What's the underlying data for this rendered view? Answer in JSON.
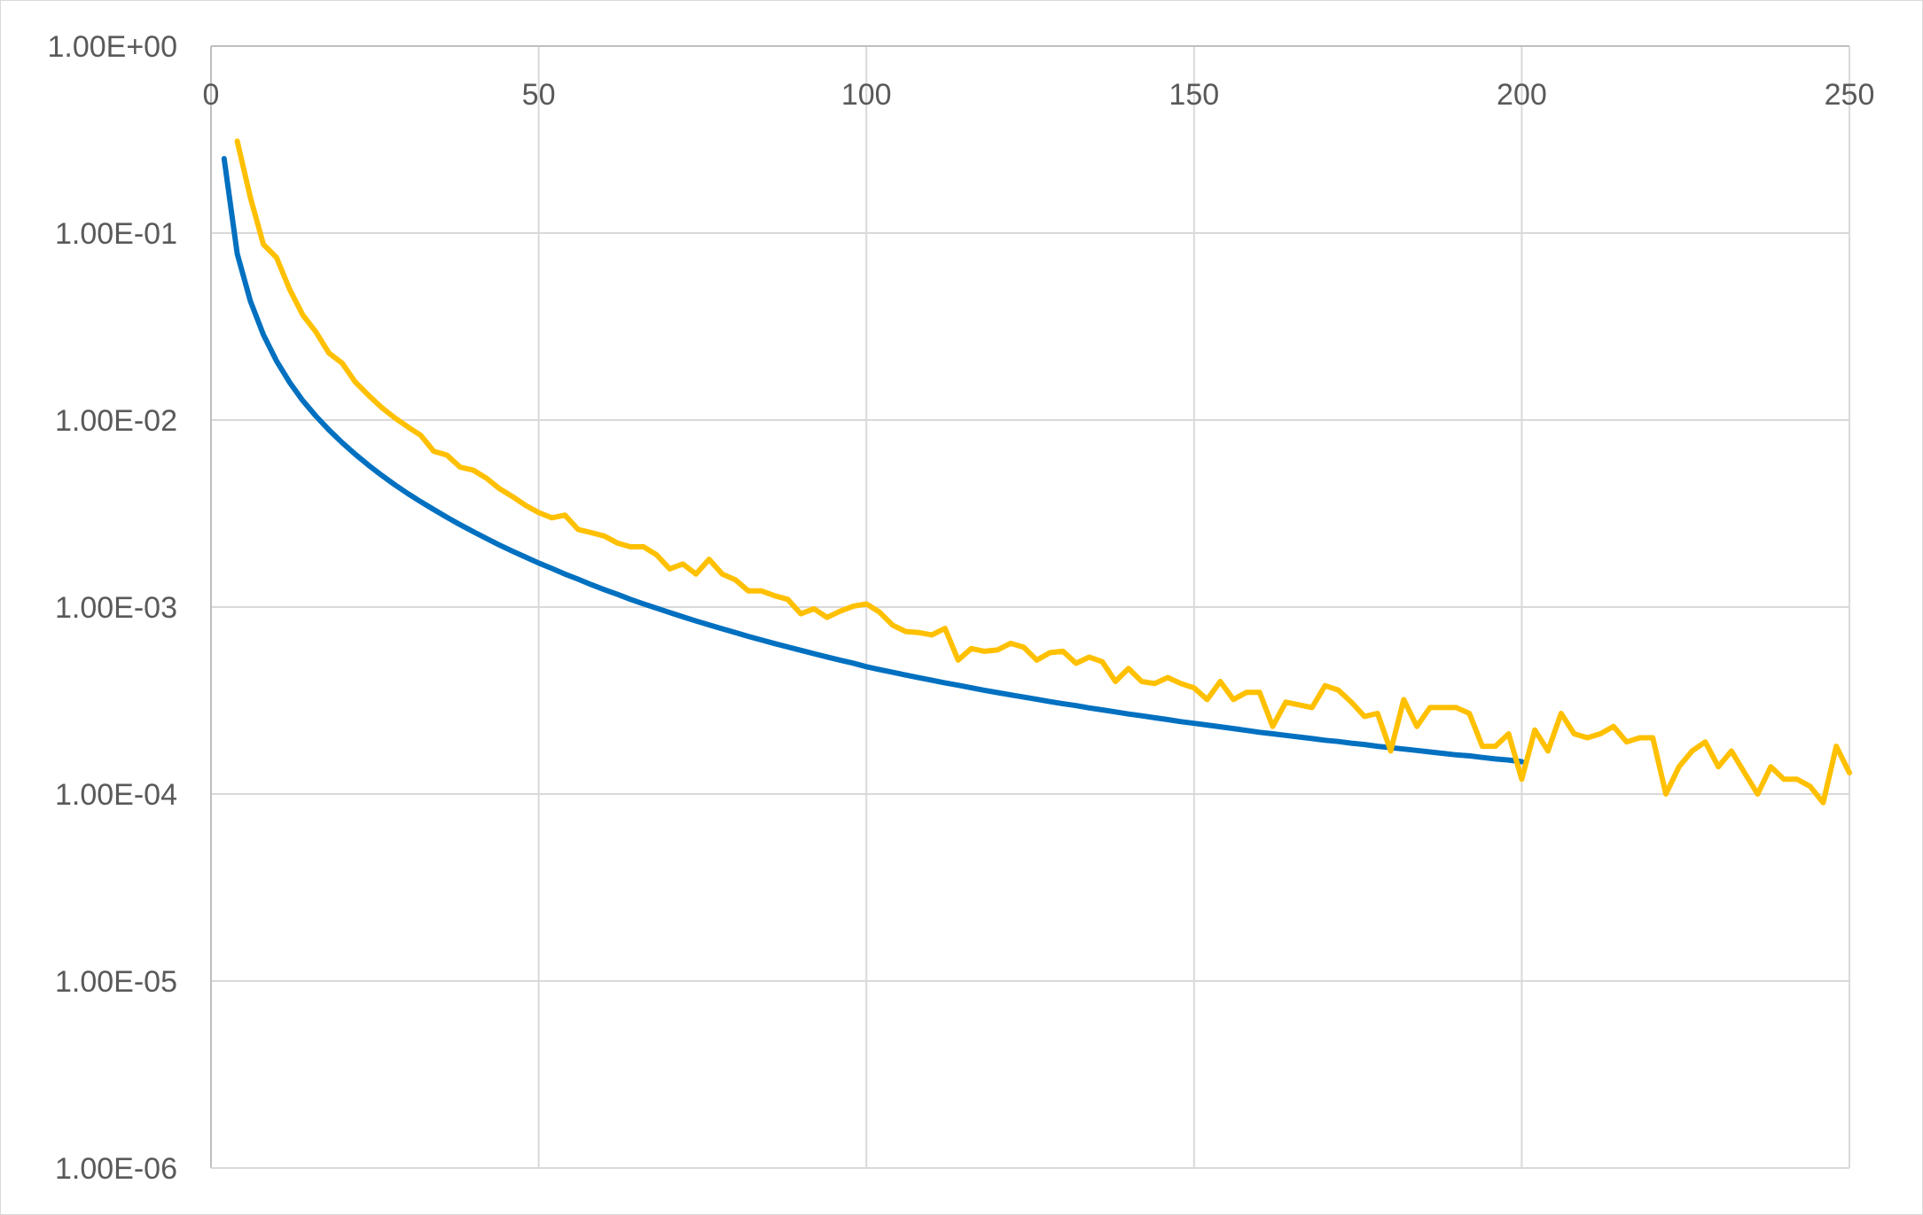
{
  "chart_data": {
    "type": "line",
    "x_axis": {
      "position": "top",
      "min": 0,
      "max": 250,
      "major_step": 50,
      "tick_labels": [
        "0",
        "50",
        "100",
        "150",
        "200",
        "250"
      ]
    },
    "y_axis": {
      "scale": "log",
      "min": 1e-06,
      "max": 1,
      "tick_values": [
        1,
        0.1,
        0.01,
        0.001,
        0.0001,
        1e-05,
        1e-06
      ],
      "tick_labels": [
        "1.00E+00",
        "1.00E-01",
        "1.00E-02",
        "1.00E-03",
        "1.00E-04",
        "1.00E-05",
        "1.00E-06"
      ]
    },
    "grid": true,
    "legend": "none",
    "series": [
      {
        "color": "#0070c0",
        "x": [
          2,
          4,
          6,
          8,
          10,
          12,
          14,
          16,
          18,
          20,
          22,
          24,
          26,
          28,
          30,
          32,
          34,
          36,
          38,
          40,
          42,
          44,
          46,
          48,
          50,
          52,
          54,
          56,
          58,
          60,
          62,
          64,
          66,
          68,
          70,
          72,
          74,
          76,
          78,
          80,
          82,
          84,
          86,
          88,
          90,
          92,
          94,
          96,
          98,
          100,
          102,
          104,
          106,
          108,
          110,
          112,
          114,
          116,
          118,
          120,
          122,
          124,
          126,
          128,
          130,
          132,
          134,
          136,
          138,
          140,
          142,
          144,
          146,
          148,
          150,
          152,
          154,
          156,
          158,
          160,
          162,
          164,
          166,
          168,
          170,
          172,
          174,
          176,
          178,
          180,
          182,
          184,
          186,
          188,
          190,
          192,
          194,
          196,
          198,
          200
        ],
        "y": [
          0.25,
          0.0775,
          0.0433,
          0.0286,
          0.0207,
          0.0159,
          0.0127,
          0.0105,
          0.00885,
          0.00758,
          0.00657,
          0.00575,
          0.00508,
          0.00452,
          0.00405,
          0.00366,
          0.00332,
          0.00302,
          0.00276,
          0.00253,
          0.00233,
          0.00215,
          0.00199,
          0.00185,
          0.00172,
          0.00161,
          0.0015,
          0.00141,
          0.00132,
          0.00124,
          0.00117,
          0.0011,
          0.00104,
          0.000986,
          0.000935,
          0.000887,
          0.000843,
          0.000803,
          0.000765,
          0.00073,
          0.000697,
          0.000667,
          0.000638,
          0.000612,
          0.000587,
          0.000563,
          0.000541,
          0.00052,
          0.000501,
          0.00048,
          0.000463,
          0.000448,
          0.000433,
          0.000419,
          0.000406,
          0.000393,
          0.000382,
          0.00037,
          0.000359,
          0.000349,
          0.000339,
          0.00033,
          0.000321,
          0.000312,
          0.000304,
          0.000297,
          0.000289,
          0.000282,
          0.000275,
          0.000268,
          0.000262,
          0.000256,
          0.00025,
          0.000244,
          0.000239,
          0.000234,
          0.000229,
          0.000224,
          0.000219,
          0.000214,
          0.00021,
          0.000206,
          0.000202,
          0.000198,
          0.000194,
          0.000191,
          0.000187,
          0.000184,
          0.00018,
          0.000177,
          0.000174,
          0.000171,
          0.000168,
          0.000165,
          0.000162,
          0.00016,
          0.000157,
          0.000154,
          0.000152,
          0.000149
        ]
      },
      {
        "color": "#ffc000",
        "x": [
          4,
          6,
          8,
          10,
          12,
          14,
          16,
          18,
          20,
          22,
          24,
          26,
          28,
          30,
          32,
          34,
          36,
          38,
          40,
          42,
          44,
          46,
          48,
          50,
          52,
          54,
          56,
          58,
          60,
          62,
          64,
          66,
          68,
          70,
          72,
          74,
          76,
          78,
          80,
          82,
          84,
          86,
          88,
          90,
          92,
          94,
          96,
          98,
          100,
          102,
          104,
          106,
          108,
          110,
          112,
          114,
          116,
          118,
          120,
          122,
          124,
          126,
          128,
          130,
          132,
          134,
          136,
          138,
          140,
          142,
          144,
          146,
          148,
          150,
          152,
          154,
          156,
          158,
          160,
          162,
          164,
          166,
          168,
          170,
          172,
          174,
          176,
          178,
          180,
          182,
          184,
          186,
          188,
          190,
          192,
          194,
          196,
          198,
          200,
          202,
          204,
          206,
          208,
          210,
          212,
          214,
          216,
          218,
          220,
          222,
          224,
          226,
          228,
          230,
          232,
          234,
          236,
          238,
          240,
          242,
          244,
          246,
          248,
          250
        ],
        "y": [
          0.31,
          0.155,
          0.087,
          0.074,
          0.05,
          0.0365,
          0.0296,
          0.0228,
          0.0202,
          0.016,
          0.0136,
          0.0117,
          0.0103,
          0.0092,
          0.0083,
          0.0068,
          0.0065,
          0.0056,
          0.0054,
          0.0049,
          0.0043,
          0.0039,
          0.0035,
          0.0032,
          0.003,
          0.0031,
          0.0026,
          0.0025,
          0.0024,
          0.0022,
          0.0021,
          0.0021,
          0.0019,
          0.0016,
          0.0017,
          0.0015,
          0.0018,
          0.0015,
          0.0014,
          0.00122,
          0.00122,
          0.00115,
          0.0011,
          0.00092,
          0.00098,
          0.00088,
          0.00095,
          0.00101,
          0.00104,
          0.00094,
          0.0008,
          0.00074,
          0.00073,
          0.00071,
          0.00077,
          0.00052,
          0.0006,
          0.00058,
          0.00059,
          0.00064,
          0.00061,
          0.00052,
          0.00057,
          0.00058,
          0.0005,
          0.00054,
          0.00051,
          0.0004,
          0.00047,
          0.0004,
          0.00039,
          0.00042,
          0.00039,
          0.00037,
          0.00032,
          0.0004,
          0.00032,
          0.00035,
          0.00035,
          0.00023,
          0.00031,
          0.0003,
          0.00029,
          0.00038,
          0.00036,
          0.00031,
          0.00026,
          0.00027,
          0.00017,
          0.00032,
          0.00023,
          0.00029,
          0.00029,
          0.00029,
          0.00027,
          0.00018,
          0.00018,
          0.00021,
          0.00012,
          0.00022,
          0.00017,
          0.00027,
          0.00021,
          0.0002,
          0.00021,
          0.00023,
          0.00019,
          0.0002,
          0.0002,
          0.0001,
          0.00014,
          0.00017,
          0.00019,
          0.00014,
          0.00017,
          0.00013,
          0.0001,
          0.00014,
          0.00012,
          0.00012,
          0.00011,
          9e-05,
          0.00018,
          0.00013
        ]
      }
    ]
  }
}
